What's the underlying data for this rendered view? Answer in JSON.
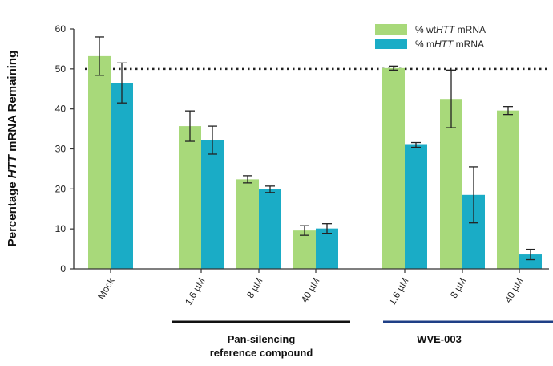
{
  "chart_data": {
    "type": "bar",
    "ylabel_parts": [
      {
        "text": "Percentage ",
        "italic": false
      },
      {
        "text": "HTT",
        "italic": true
      },
      {
        "text": " mRNA Remaining",
        "italic": false
      }
    ],
    "ylim": [
      0,
      60
    ],
    "yticks": [
      "0",
      "10",
      "20",
      "30",
      "40",
      "50",
      "60"
    ],
    "reference_line": 50,
    "categories": [
      "Mock",
      "1.6 µM",
      "8 µM",
      "40 µM",
      "1.6 µM",
      "8 µM",
      "40 µM"
    ],
    "series": [
      {
        "name_parts": [
          {
            "text": "% wt",
            "italic": false
          },
          {
            "text": "HTT",
            "italic": true
          },
          {
            "text": " mRNA",
            "italic": false
          }
        ],
        "color": "#a8d97a",
        "values": [
          53.2,
          35.7,
          22.4,
          9.6,
          50.2,
          42.5,
          39.6
        ],
        "error": [
          4.8,
          3.8,
          0.9,
          1.2,
          0.5,
          7.2,
          1.0
        ]
      },
      {
        "name_parts": [
          {
            "text": "% m",
            "italic": false
          },
          {
            "text": "HTT",
            "italic": true
          },
          {
            "text": " mRNA",
            "italic": false
          }
        ],
        "color": "#1aacc6",
        "values": [
          46.5,
          32.2,
          19.9,
          10.1,
          31.0,
          18.5,
          3.6
        ],
        "error": [
          5.0,
          3.5,
          0.8,
          1.2,
          0.6,
          7.0,
          1.3
        ]
      }
    ],
    "groups": [
      {
        "label_lines": [
          "Pan-silencing",
          "reference compound"
        ],
        "color": "#111111"
      },
      {
        "label_lines": [
          "WVE-003"
        ],
        "color": "#1f3f86"
      }
    ],
    "legend_position": "top-right",
    "grid": false
  }
}
